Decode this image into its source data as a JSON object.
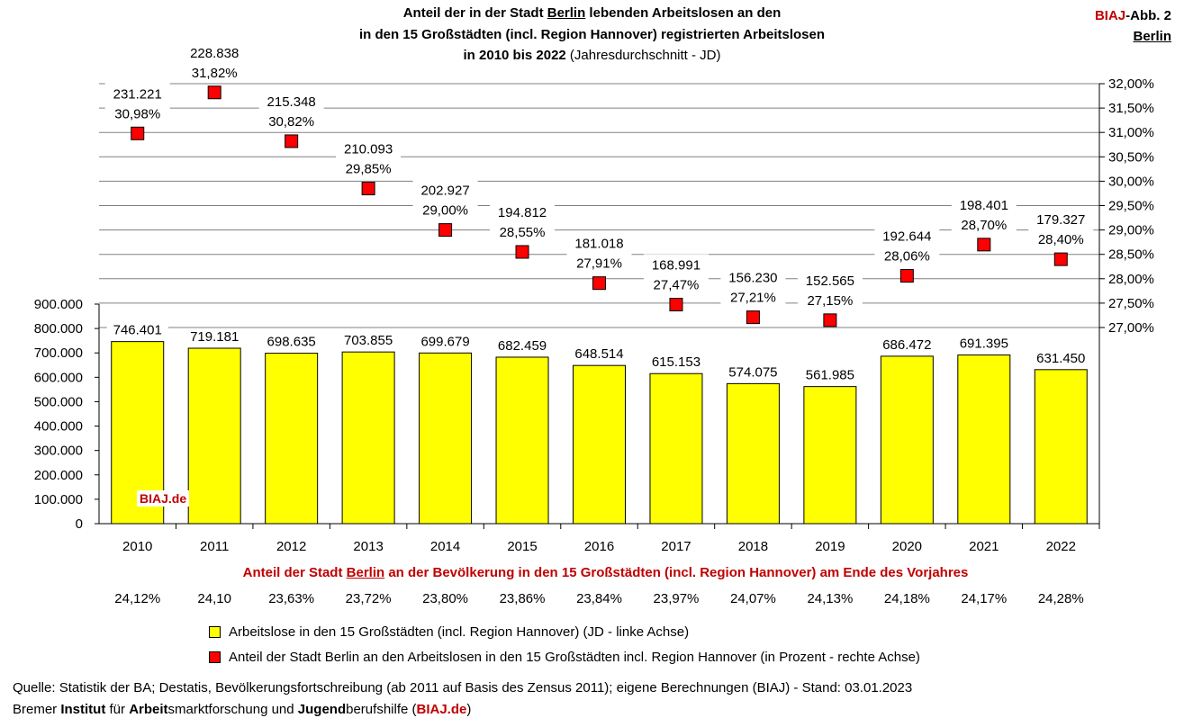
{
  "badge": {
    "line1_brand": "BIAJ",
    "line1_rest": "-Abb. 2",
    "line2": "Berlin"
  },
  "title": {
    "line1_pre": "Anteil der in der Stadt ",
    "line1_city": "Berlin",
    "line1_post": " lebenden Arbeitslosen an den",
    "line2": "in den 15 Großstädten (incl. Region Hannover) registrierten Arbeitslosen",
    "line3_bold": "in 2010 bis 2022",
    "line3_normal": " (Jahresdurchschnitt - JD)"
  },
  "watermark": "BIAJ.de",
  "chart_data": {
    "type": "bar",
    "categories": [
      "2010",
      "2011",
      "2012",
      "2013",
      "2014",
      "2015",
      "2016",
      "2017",
      "2018",
      "2019",
      "2020",
      "2021",
      "2022"
    ],
    "series": [
      {
        "name": "Arbeitslose in den 15 Großstädten (incl. Region Hannover) (JD - linke Achse)",
        "type": "bar",
        "axis": "left",
        "color": "#ffff00",
        "values": [
          746401,
          719181,
          698635,
          703855,
          699679,
          682459,
          648514,
          615153,
          574075,
          561985,
          686472,
          691395,
          631450
        ],
        "labels": [
          "746.401",
          "719.181",
          "698.635",
          "703.855",
          "699.679",
          "682.459",
          "648.514",
          "615.153",
          "574.075",
          "561.985",
          "686.472",
          "691.395",
          "631.450"
        ]
      },
      {
        "name": "Anteil der Stadt Berlin an den Arbeitslosen in den 15 Großstädten incl. Region Hannover (in Prozent - rechte Achse)",
        "type": "scatter",
        "axis": "right",
        "color": "#ff0000",
        "values": [
          30.98,
          31.82,
          30.82,
          29.85,
          29.0,
          28.55,
          27.91,
          27.47,
          27.21,
          27.15,
          28.06,
          28.7,
          28.4
        ],
        "labels": [
          "30,98%",
          "31,82%",
          "30,82%",
          "29,85%",
          "29,00%",
          "28,55%",
          "27,91%",
          "27,47%",
          "27,21%",
          "27,15%",
          "28,06%",
          "28,70%",
          "28,40%"
        ],
        "berlin_counts": [
          "231.221",
          "228.838",
          "215.348",
          "210.093",
          "202.927",
          "194.812",
          "181.018",
          "168.991",
          "156.230",
          "152.565",
          "192.644",
          "198.401",
          "179.327"
        ]
      }
    ],
    "left_axis": {
      "min": 0,
      "max": 900000,
      "ticks": [
        "0",
        "100.000",
        "200.000",
        "300.000",
        "400.000",
        "500.000",
        "600.000",
        "700.000",
        "800.000",
        "900.000"
      ]
    },
    "right_axis": {
      "min": 27.0,
      "max": 32.0,
      "ticks": [
        "27,00%",
        "27,50%",
        "28,00%",
        "28,50%",
        "29,00%",
        "29,50%",
        "30,00%",
        "30,50%",
        "31,00%",
        "31,50%",
        "32,00%"
      ]
    },
    "grid": true
  },
  "population_share": {
    "heading_pre": "Anteil der Stadt ",
    "heading_city": "Berlin",
    "heading_post": " an der Bevölkerung in den 15 Großstädten (incl. Region Hannover) am Ende des Vorjahres",
    "values": [
      "24,12%",
      "24,10",
      "23,63%",
      "23,72%",
      "23,80%",
      "23,86%",
      "23,84%",
      "23,97%",
      "24,07%",
      "24,13%",
      "24,18%",
      "24,17%",
      "24,28%"
    ]
  },
  "legend": [
    {
      "label": "Arbeitslose in den 15 Großstädten (incl. Region Hannover) (JD - linke Achse)",
      "color": "#ffff00"
    },
    {
      "label": "Anteil der Stadt Berlin an den Arbeitslosen in den 15 Großstädten incl. Region Hannover (in Prozent - rechte Achse)",
      "color": "#ff0000"
    }
  ],
  "footer": {
    "source": "Quelle: Statistik der BA; Destatis, Bevölkerungsfortschreibung (ab 2011 auf Basis des Zensus 2011); eigene Berechnungen (BIAJ) - Stand: 03.01.2023",
    "institute_parts": [
      {
        "text": "Bremer ",
        "bold": false,
        "red": false
      },
      {
        "text": "Institut",
        "bold": true,
        "red": false
      },
      {
        "text": " für ",
        "bold": false,
        "red": false
      },
      {
        "text": "Arbeit",
        "bold": true,
        "red": false
      },
      {
        "text": "smarktforschung und ",
        "bold": false,
        "red": false
      },
      {
        "text": "Jugend",
        "bold": true,
        "red": false
      },
      {
        "text": "berufshilfe (",
        "bold": false,
        "red": false
      },
      {
        "text": "BIAJ.de",
        "bold": true,
        "red": true
      },
      {
        "text": ")",
        "bold": false,
        "red": false
      }
    ]
  }
}
